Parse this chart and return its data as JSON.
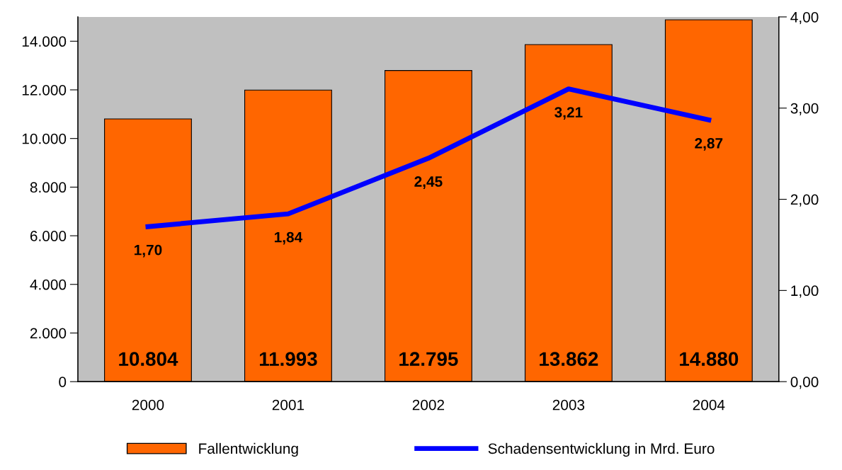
{
  "chart_data": {
    "type": "bar",
    "categories": [
      "2000",
      "2001",
      "2002",
      "2003",
      "2004"
    ],
    "series": [
      {
        "name": "Fallentwicklung",
        "color": "#ff6600",
        "values": [
          10804,
          11993,
          12795,
          13862,
          14880
        ],
        "value_labels": [
          "10.804",
          "11.993",
          "12.795",
          "13.862",
          "14.880"
        ]
      },
      {
        "name": "Schadensentwicklung in Mrd. Euro",
        "type": "line",
        "axis": "y2",
        "color": "#0000ff",
        "values": [
          1.7,
          1.84,
          2.45,
          3.21,
          2.87
        ],
        "value_labels": [
          "1,70",
          "1,84",
          "2,45",
          "3,21",
          "2,87"
        ]
      }
    ],
    "ylim": [
      0,
      15000
    ],
    "yticks": [
      0,
      {
        "value": 2000,
        "label": "2.000"
      },
      {
        "value": 4000,
        "label": "4.000"
      },
      {
        "value": 6000,
        "label": "6.000"
      },
      {
        "value": 8000,
        "label": "8.000"
      },
      {
        "value": 10000,
        "label": "10.000"
      },
      {
        "value": 12000,
        "label": "12.000"
      },
      {
        "value": 14000,
        "label": "14.000"
      }
    ],
    "y2lim": [
      0,
      4
    ],
    "y2ticks": [
      {
        "value": 0,
        "label": "0,00"
      },
      {
        "value": 1,
        "label": "1,00"
      },
      {
        "value": 2,
        "label": "2,00"
      },
      {
        "value": 3,
        "label": "3,00"
      },
      {
        "value": 4,
        "label": "4,00"
      }
    ],
    "grid": false,
    "legend": "bottom",
    "marker": "none",
    "line_style": "solid"
  }
}
